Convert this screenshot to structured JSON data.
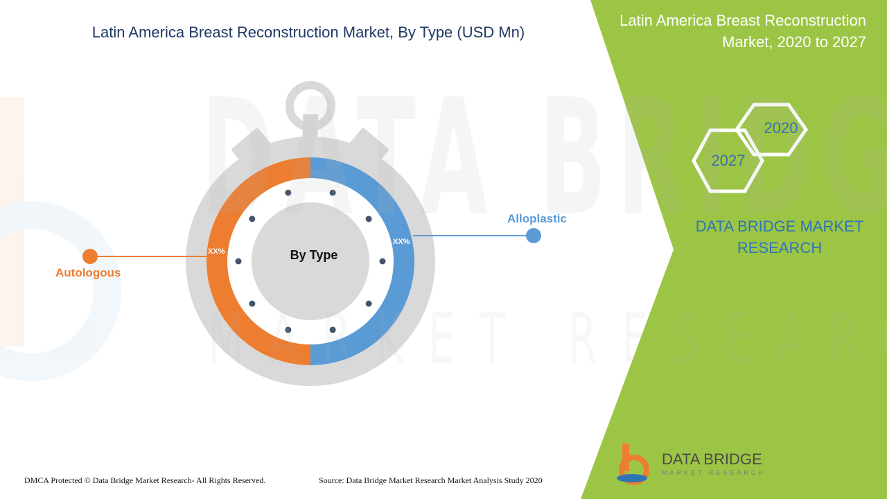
{
  "title": "Latin America Breast Reconstruction Market, By Type (USD Mn)",
  "side_title": "Latin America Breast Reconstruction Market, 2020 to 2027",
  "years": {
    "start": "2020",
    "end": "2027"
  },
  "brand_text": "DATA BRIDGE MARKET RESEARCH",
  "footer": {
    "copyright": "DMCA Protected © Data Bridge Market Research- All Rights Reserved.",
    "source": "Source: Data Bridge Market Research Market Analysis Study 2020"
  },
  "logo": {
    "name": "DATA BRIDGE",
    "tagline": "MARKET RESEARCH"
  },
  "colors": {
    "green_panel": "#9dc545",
    "autologous": "#ed7d31",
    "alloplastic": "#5b9bd5",
    "title": "#1f3864",
    "ring_gray": "#d9d9d9",
    "dot": "#44546a"
  },
  "chart_data": {
    "type": "pie",
    "title": "Latin America Breast Reconstruction Market, By Type (USD Mn)",
    "center_label": "By Type",
    "series": [
      {
        "name": "Autologous",
        "value_label": "XX%",
        "share": 0.5
      },
      {
        "name": "Alloplastic",
        "value_label": "XX%",
        "share": 0.5
      }
    ]
  }
}
